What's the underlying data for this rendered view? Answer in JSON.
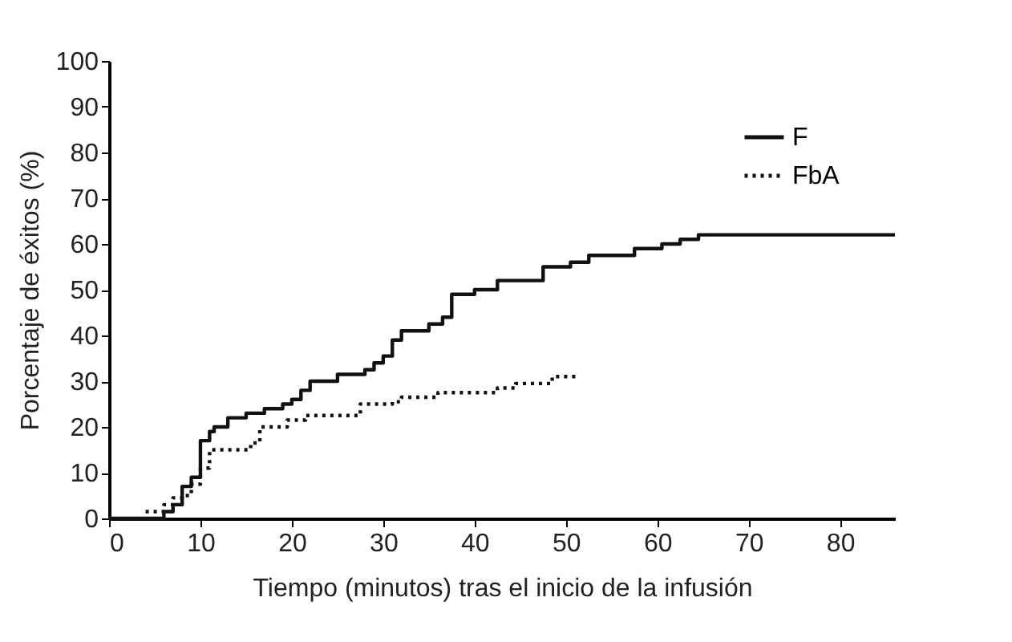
{
  "chart_data": {
    "type": "step",
    "xlabel": "Tiempo (minutos) tras el inicio de la infusión",
    "ylabel": "Porcentaje de éxitos (%)",
    "xlim": [
      0,
      86
    ],
    "xticks": [
      0,
      10,
      20,
      30,
      40,
      50,
      60,
      70,
      80
    ],
    "ylim": [
      0,
      100
    ],
    "yticks": [
      0,
      10,
      20,
      30,
      40,
      50,
      60,
      70,
      80,
      90,
      100
    ],
    "grid": false,
    "legend": "top right",
    "series": [
      {
        "name": "F",
        "color": "#111111",
        "line_style": "solid",
        "x": [
          0,
          6,
          7,
          8,
          9,
          10,
          11,
          11.5,
          13,
          15,
          17,
          19,
          20,
          21,
          22,
          25,
          28,
          29,
          30,
          31,
          32,
          35,
          36.5,
          37.5,
          40,
          42.5,
          47.5,
          50.5,
          52.5,
          57.5,
          60.5,
          62.5,
          64.5,
          86
        ],
        "values": [
          0,
          1.5,
          3,
          7,
          9,
          17,
          19,
          20,
          22,
          23,
          24,
          25,
          26,
          28,
          30,
          31.5,
          32.5,
          34,
          35.5,
          39,
          41,
          42.5,
          44,
          49,
          50,
          52,
          55,
          56,
          57.5,
          59,
          60,
          61,
          62,
          62
        ]
      },
      {
        "name": "FbA",
        "color": "#111111",
        "line_style": "dotted",
        "x": [
          4,
          6,
          7,
          8,
          9,
          10,
          11,
          15.5,
          16.5,
          19.5,
          21.5,
          27.5,
          31,
          32,
          36,
          42.5,
          44.5,
          48.5,
          51.5
        ],
        "values": [
          1.5,
          3,
          4.5,
          5,
          7.5,
          11,
          15,
          16.5,
          20,
          21.5,
          22.5,
          25,
          25.5,
          26.5,
          27.5,
          28.5,
          29.5,
          31,
          31
        ]
      }
    ]
  }
}
